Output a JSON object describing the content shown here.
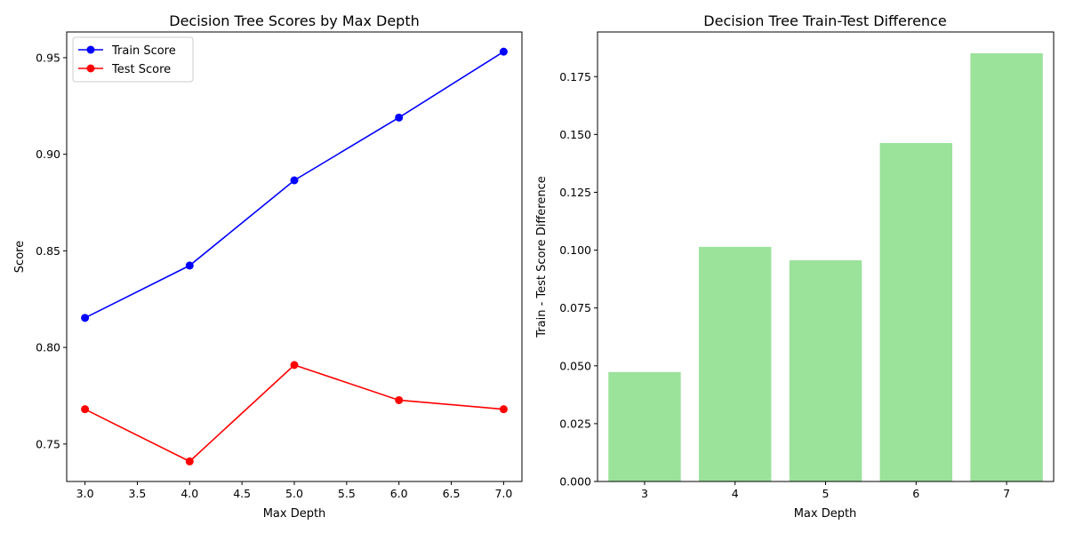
{
  "chart_data": [
    {
      "type": "line",
      "title": "Decision Tree Scores by Max Depth",
      "xlabel": "Max Depth",
      "ylabel": "Score",
      "x": [
        3,
        4,
        5,
        6,
        7
      ],
      "xlim": [
        2.825,
        7.175
      ],
      "ylim": [
        0.7306,
        0.9633
      ],
      "xticks": [
        "3.0",
        "3.5",
        "4.0",
        "4.5",
        "5.0",
        "5.5",
        "6.0",
        "6.5",
        "7.0"
      ],
      "yticks": [
        "0.75",
        "0.80",
        "0.85",
        "0.90",
        "0.95"
      ],
      "grid": false,
      "legend": "top-left",
      "series": [
        {
          "name": "Train Score",
          "color": "#0000ff",
          "marker": "circle",
          "values": [
            0.8153,
            0.8424,
            0.8865,
            0.919,
            0.9531
          ]
        },
        {
          "name": "Test Score",
          "color": "#ff0000",
          "marker": "circle",
          "values": [
            0.768,
            0.741,
            0.7909,
            0.7727,
            0.768
          ]
        }
      ]
    },
    {
      "type": "bar",
      "title": "Decision Tree Train-Test Difference",
      "xlabel": "Max Depth",
      "ylabel": "Train - Test Score Difference",
      "categories": [
        "3",
        "4",
        "5",
        "6",
        "7"
      ],
      "values": [
        0.0473,
        0.1014,
        0.0956,
        0.1463,
        0.1851
      ],
      "color": "#9be29b",
      "ylim": [
        0,
        0.1943
      ],
      "yticks": [
        "0.000",
        "0.025",
        "0.050",
        "0.075",
        "0.100",
        "0.125",
        "0.150",
        "0.175"
      ],
      "grid": false
    }
  ]
}
